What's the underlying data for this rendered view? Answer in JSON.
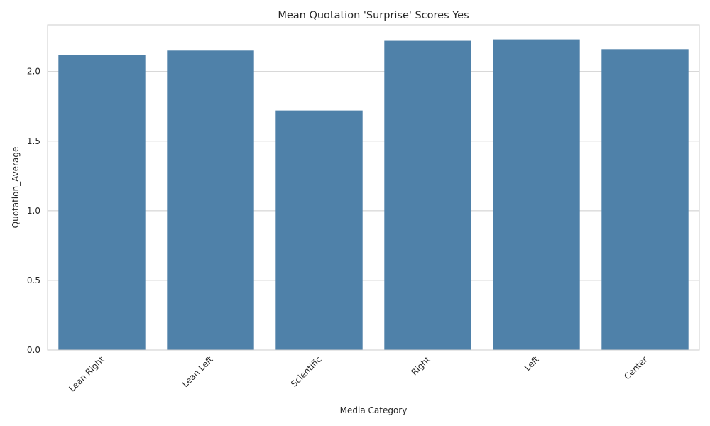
{
  "chart_data": {
    "type": "bar",
    "title": "Mean Quotation 'Surprise' Scores Yes",
    "xlabel": "Media Category",
    "ylabel": "Quotation_Average",
    "categories": [
      "Lean Right",
      "Lean Left",
      "Scientific",
      "Right",
      "Left",
      "Center"
    ],
    "values": [
      2.12,
      2.15,
      1.72,
      2.22,
      2.23,
      2.16
    ],
    "ylim": [
      0,
      2.335
    ],
    "yticks": [
      0.0,
      0.5,
      1.0,
      1.5,
      2.0
    ],
    "ytick_labels": [
      "0.0",
      "0.5",
      "1.0",
      "1.5",
      "2.0"
    ],
    "bar_color": "#4f81a9",
    "grid": true,
    "grid_axis": "y",
    "legend": "none"
  }
}
